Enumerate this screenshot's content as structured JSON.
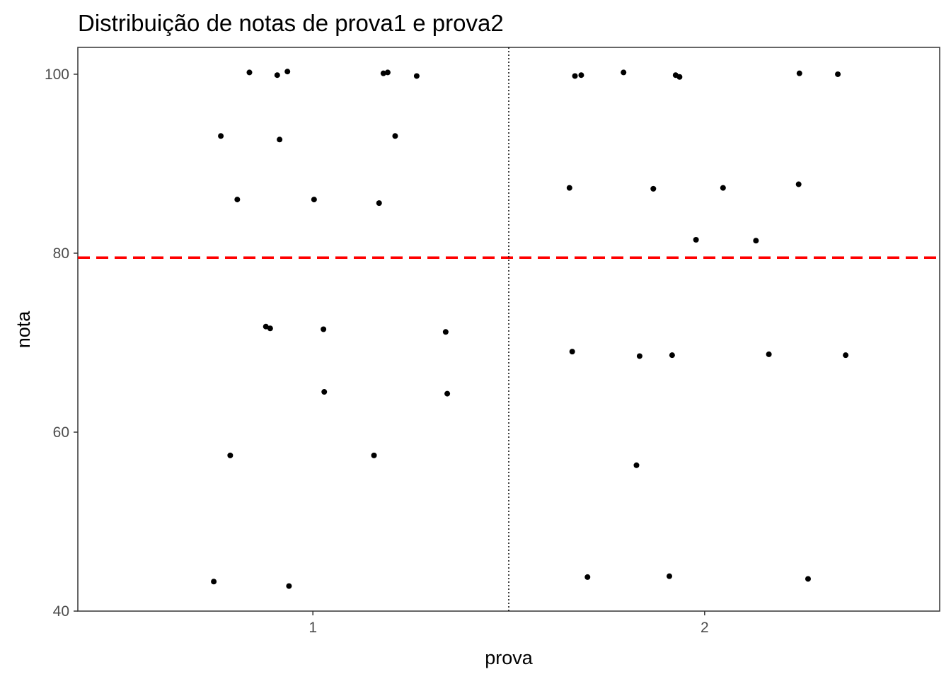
{
  "chart_data": {
    "type": "scatter",
    "title": "Distribuição de notas de prova1 e prova2",
    "xlabel": "prova",
    "ylabel": "nota",
    "xlim": [
      0.4,
      2.6
    ],
    "ylim": [
      40,
      103
    ],
    "x_ticks": [
      1,
      2
    ],
    "x_tick_labels": [
      "1",
      "2"
    ],
    "y_ticks": [
      40,
      60,
      80,
      100
    ],
    "y_tick_labels": [
      "40",
      "60",
      "80",
      "100"
    ],
    "grid": false,
    "reference_lines": [
      {
        "orientation": "horizontal",
        "value": 79.5,
        "style": "dashed",
        "color": "#ff0000"
      },
      {
        "orientation": "vertical",
        "value": 1.5,
        "style": "dotted",
        "color": "#000000"
      }
    ],
    "series": [
      {
        "points": [
          {
            "x": 0.838,
            "y": 100.2
          },
          {
            "x": 0.909,
            "y": 99.9
          },
          {
            "x": 0.935,
            "y": 100.3
          },
          {
            "x": 1.18,
            "y": 100.1
          },
          {
            "x": 1.191,
            "y": 100.2
          },
          {
            "x": 1.265,
            "y": 99.8
          },
          {
            "x": 0.765,
            "y": 93.1
          },
          {
            "x": 0.915,
            "y": 92.7
          },
          {
            "x": 1.21,
            "y": 93.1
          },
          {
            "x": 0.807,
            "y": 86.0
          },
          {
            "x": 1.003,
            "y": 86.0
          },
          {
            "x": 1.169,
            "y": 85.6
          },
          {
            "x": 0.88,
            "y": 71.8
          },
          {
            "x": 0.891,
            "y": 71.6
          },
          {
            "x": 1.027,
            "y": 71.5
          },
          {
            "x": 1.339,
            "y": 71.2
          },
          {
            "x": 1.029,
            "y": 64.5
          },
          {
            "x": 1.343,
            "y": 64.3
          },
          {
            "x": 0.789,
            "y": 57.4
          },
          {
            "x": 1.156,
            "y": 57.4
          },
          {
            "x": 0.747,
            "y": 43.3
          },
          {
            "x": 0.939,
            "y": 42.8
          },
          {
            "x": 1.669,
            "y": 99.8
          },
          {
            "x": 1.685,
            "y": 99.9
          },
          {
            "x": 1.793,
            "y": 100.2
          },
          {
            "x": 1.926,
            "y": 99.9
          },
          {
            "x": 1.936,
            "y": 99.7
          },
          {
            "x": 2.242,
            "y": 100.1
          },
          {
            "x": 2.34,
            "y": 100.0
          },
          {
            "x": 1.655,
            "y": 87.3
          },
          {
            "x": 1.869,
            "y": 87.2
          },
          {
            "x": 2.047,
            "y": 87.3
          },
          {
            "x": 2.24,
            "y": 87.7
          },
          {
            "x": 1.978,
            "y": 81.5
          },
          {
            "x": 2.131,
            "y": 81.4
          },
          {
            "x": 1.662,
            "y": 69.0
          },
          {
            "x": 1.834,
            "y": 68.5
          },
          {
            "x": 1.917,
            "y": 68.6
          },
          {
            "x": 2.164,
            "y": 68.7
          },
          {
            "x": 2.36,
            "y": 68.6
          },
          {
            "x": 1.826,
            "y": 56.3
          },
          {
            "x": 1.701,
            "y": 43.8
          },
          {
            "x": 1.91,
            "y": 43.9
          },
          {
            "x": 2.264,
            "y": 43.6
          }
        ]
      }
    ]
  }
}
